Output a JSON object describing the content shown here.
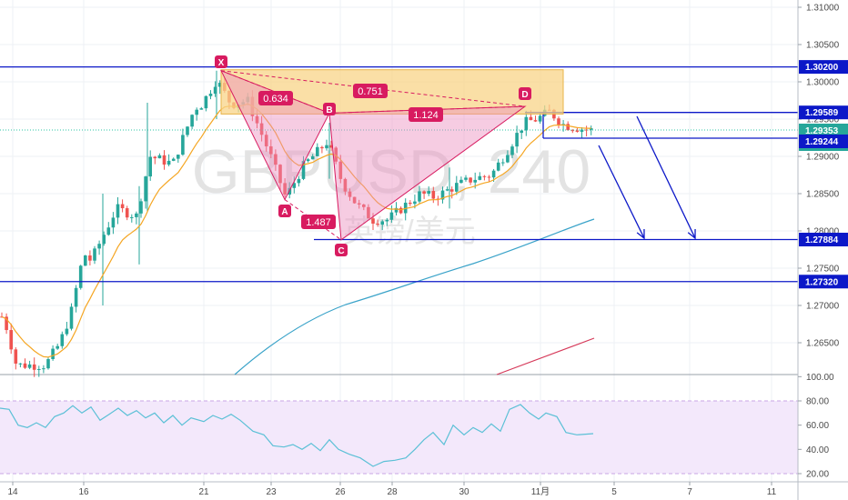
{
  "chart_data": [
    {
      "type": "candlestick",
      "watermark": {
        "symbol": "GBPUSD, 240",
        "name": "英镑/美元"
      },
      "x_ticks": [
        "14",
        "16",
        "21",
        "23",
        "26",
        "28",
        "30",
        "11月",
        "5",
        "7",
        "11"
      ],
      "y_ticks": [
        "1.31000",
        "1.30500",
        "1.30000",
        "1.29500",
        "1.29000",
        "1.28500",
        "1.28000",
        "1.27500",
        "1.27000",
        "1.26500"
      ],
      "ylim": [
        1.2615,
        1.3125
      ],
      "price_tags": [
        {
          "value": "1.30200",
          "style": "line"
        },
        {
          "value": "1.29589",
          "style": "line"
        },
        {
          "value": "1.29353",
          "style": "last"
        },
        {
          "value": "51:58",
          "style": "timer"
        },
        {
          "value": "1.29244",
          "style": "line"
        },
        {
          "value": "1.27884",
          "style": "line"
        },
        {
          "value": "1.27320",
          "style": "line"
        }
      ],
      "horizontal_levels": [
        1.302,
        1.29589,
        1.29244,
        1.27884,
        1.2732
      ],
      "harmonic_pattern": {
        "points": [
          {
            "label": "X",
            "price": 1.3015
          },
          {
            "label": "A",
            "price": 1.2842
          },
          {
            "label": "B",
            "price": 1.2958
          },
          {
            "label": "C",
            "price": 1.2788
          },
          {
            "label": "D",
            "price": 1.2967
          }
        ],
        "ratios": [
          "0.634",
          "0.751",
          "1.124",
          "1.487"
        ]
      },
      "indicators": [
        "EMA",
        "SMA (medium)",
        "SMA (long)"
      ],
      "colors": {
        "up": "#26a69a",
        "down": "#ef5350",
        "levels": "#0c18c8",
        "pattern": "#d81b60",
        "ema": "#f5a623",
        "sma_mid": "#3aa3c9",
        "sma_long": "#d63a5a"
      },
      "projection": "two downward arrows toward 1.27884"
    },
    {
      "type": "line",
      "name": "RSI",
      "y_ticks": [
        "100.00",
        "80.00",
        "60.00",
        "40.00",
        "20.00"
      ],
      "ylim": [
        15,
        100
      ],
      "band": [
        20,
        80
      ],
      "colors": {
        "line": "#5bc0d6",
        "band": "#f3e8fb"
      }
    }
  ]
}
